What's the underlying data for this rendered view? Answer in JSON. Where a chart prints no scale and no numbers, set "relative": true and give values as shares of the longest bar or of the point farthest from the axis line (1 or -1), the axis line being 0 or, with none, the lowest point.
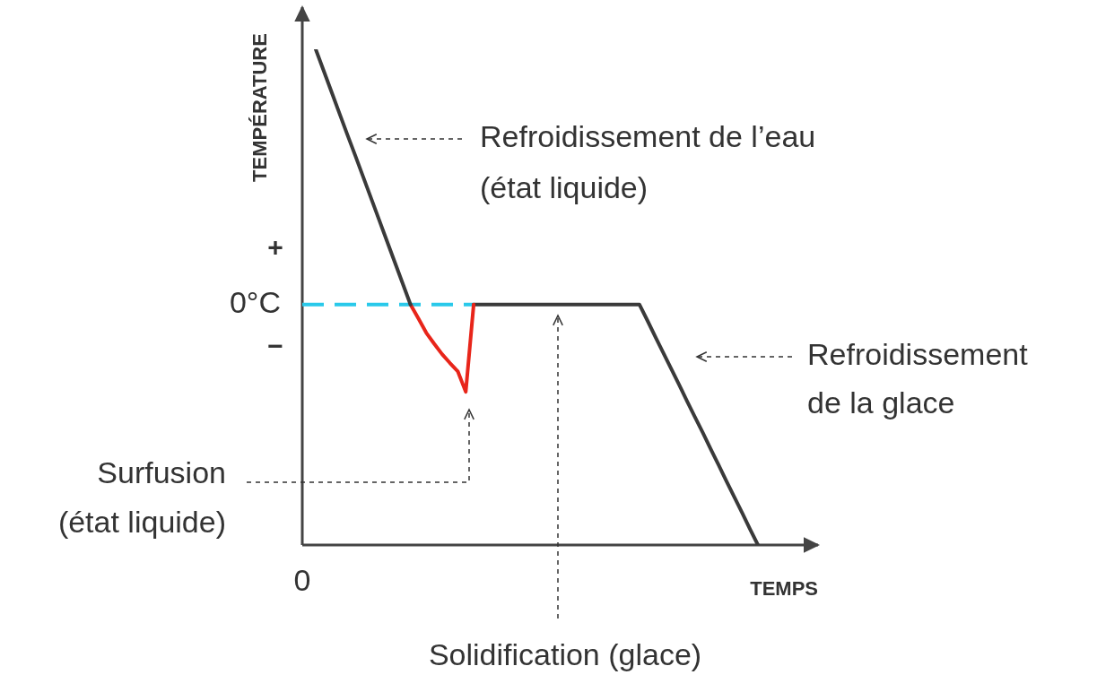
{
  "chart_data": {
    "type": "line",
    "relative": true,
    "xlabel": "TEMPS",
    "ylabel": "TEMPÉRATURE",
    "marker": "none",
    "line_style": "solid",
    "legend": false,
    "categories": [
      null,
      null,
      null,
      null,
      null,
      null,
      null,
      null,
      null,
      null,
      null,
      null,
      null,
      null,
      null,
      null,
      null,
      null,
      null,
      null,
      null,
      null,
      null,
      null,
      null,
      null,
      null,
      null,
      null,
      null,
      null,
      null,
      null,
      null,
      null,
      null,
      null,
      null,
      null,
      null,
      null,
      null,
      null,
      null,
      null,
      null,
      null,
      null,
      null,
      null,
      null,
      null,
      null,
      null,
      null,
      null,
      null
    ],
    "series": [
      {
        "color": "#3a3a3a",
        "values": [
          1,
          0.957,
          0.914,
          0.871,
          0.828,
          0.786,
          0.743,
          0.7,
          0.657,
          0.614,
          0.571,
          0.528,
          0.485,
          null,
          null,
          null,
          null,
          null,
          null,
          null,
          null,
          null,
          null,
          null,
          null,
          null,
          null,
          null,
          null,
          null,
          null,
          null,
          null,
          null,
          null,
          null,
          null,
          null,
          null,
          null,
          null,
          null,
          null,
          null,
          null,
          null,
          null,
          null,
          null,
          null,
          null,
          null,
          null,
          null,
          null,
          null,
          null
        ]
      },
      {
        "color": "#e8251a",
        "values": [
          null,
          null,
          null,
          null,
          null,
          null,
          null,
          null,
          null,
          null,
          null,
          null,
          0.485,
          0.457,
          0.428,
          0.406,
          0.385,
          0.367,
          0.35,
          0.309,
          0.485,
          null,
          null,
          null,
          null,
          null,
          null,
          null,
          null,
          null,
          null,
          null,
          null,
          null,
          null,
          null,
          null,
          null,
          null,
          null,
          null,
          null,
          null,
          null,
          null,
          null,
          null,
          null,
          null,
          null,
          null,
          null,
          null,
          null,
          null,
          null,
          null
        ]
      },
      {
        "color": "#3a3a3a",
        "values": [
          null,
          null,
          null,
          null,
          null,
          null,
          null,
          null,
          null,
          null,
          null,
          null,
          null,
          null,
          null,
          null,
          null,
          null,
          null,
          null,
          0.485,
          0.485,
          0.485,
          0.485,
          0.485,
          0.485,
          0.485,
          0.485,
          0.485,
          0.485,
          0.485,
          0.485,
          0.485,
          0.485,
          0.485,
          0.485,
          0.485,
          0.485,
          0.485,
          0.485,
          0.485,
          0.485,
          0.453,
          0.42,
          0.388,
          0.356,
          0.324,
          0.291,
          0.259,
          0.227,
          0.194,
          0.162,
          0.129,
          0.097,
          0.065,
          0.032,
          0
        ]
      }
    ],
    "ref_lines": [
      {
        "axis": "y",
        "value": 0.485,
        "label": "0°C",
        "color": "#29c9ea",
        "line_style": "dashed"
      }
    ],
    "annotations": [
      "Refroidissement de l’eau\n(état liquide)",
      "Refroidissement\nde la glace",
      "Surfusion\n(état liquide)",
      "Solidification (glace)",
      "+",
      "−",
      "0"
    ]
  }
}
